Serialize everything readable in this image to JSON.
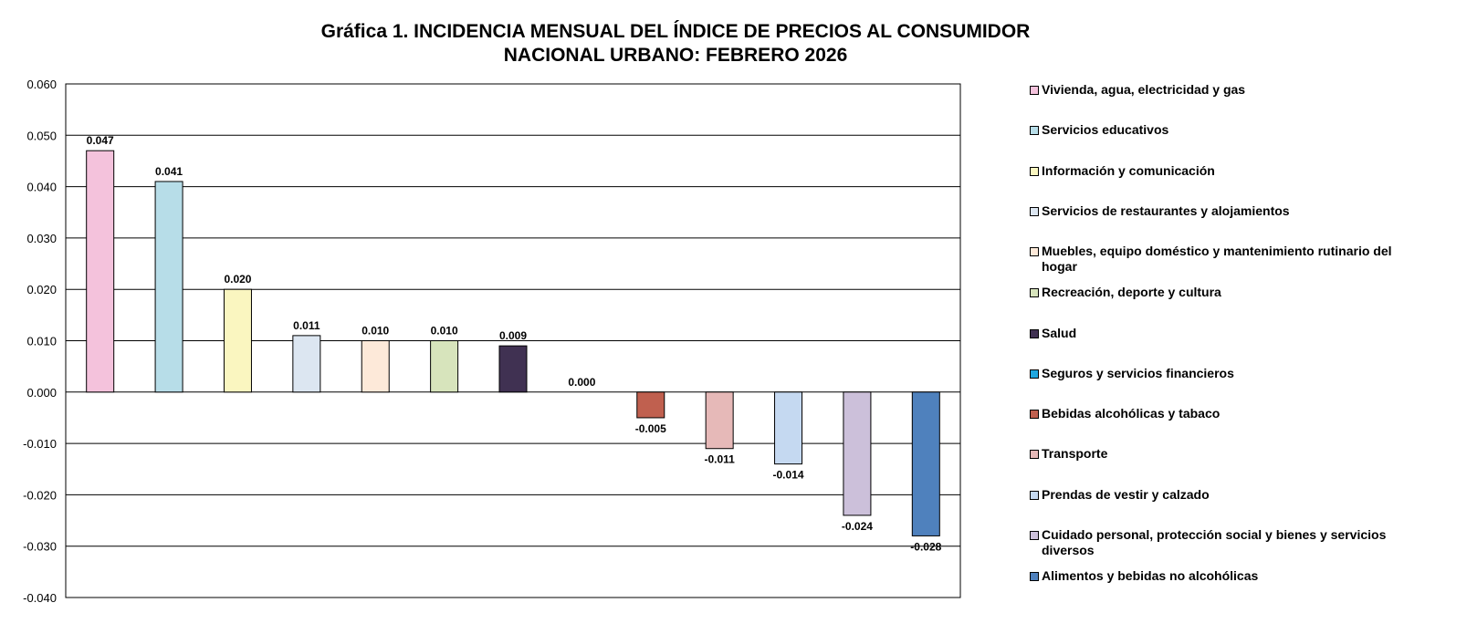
{
  "chart_data": {
    "type": "bar",
    "title_line1": "Gráfica 1.  INCIDENCIA MENSUAL DEL ÍNDICE DE PRECIOS AL CONSUMIDOR",
    "title_line2": "NACIONAL URBANO: FEBRERO 2026",
    "xlabel": "",
    "ylabel": "",
    "ylim": [
      -0.04,
      0.06
    ],
    "yticks": [
      "0.060",
      "0.050",
      "0.040",
      "0.030",
      "0.020",
      "0.010",
      "0.000",
      "-0.010",
      "-0.020",
      "-0.030",
      "-0.040"
    ],
    "grid": true,
    "legend_position": "right",
    "categories": [
      "Vivienda, agua, electricidad y gas",
      "Servicios educativos",
      "Información y comunicación",
      "Servicios de restaurantes y alojamientos",
      "Muebles, equipo doméstico y mantenimiento rutinario del hogar",
      "Recreación, deporte y cultura",
      "Salud",
      "Seguros y servicios financieros",
      "Bebidas alcohólicas y tabaco",
      "Transporte",
      "Prendas de vestir y calzado",
      "Cuidado personal, protección social y bienes y servicios diversos",
      "Alimentos y bebidas no alcohólicas"
    ],
    "values": [
      0.047,
      0.041,
      0.02,
      0.011,
      0.01,
      0.01,
      0.009,
      0.0,
      -0.005,
      -0.011,
      -0.014,
      -0.024,
      -0.028
    ],
    "labels": [
      "0.047",
      "0.041",
      "0.020",
      "0.011",
      "0.010",
      "0.010",
      "0.009",
      "0.000",
      "-0.005",
      "-0.011",
      "-0.014",
      "-0.024",
      "-0.028"
    ],
    "colors": [
      "#F4C2DC",
      "#B7DDE8",
      "#FAF6C0",
      "#DCE6F1",
      "#FDE9D9",
      "#D7E4BC",
      "#403152",
      "#1FA7E0",
      "#C0604F",
      "#E6B9B8",
      "#C5D9F1",
      "#CCC0DA",
      "#4F81BD"
    ]
  }
}
